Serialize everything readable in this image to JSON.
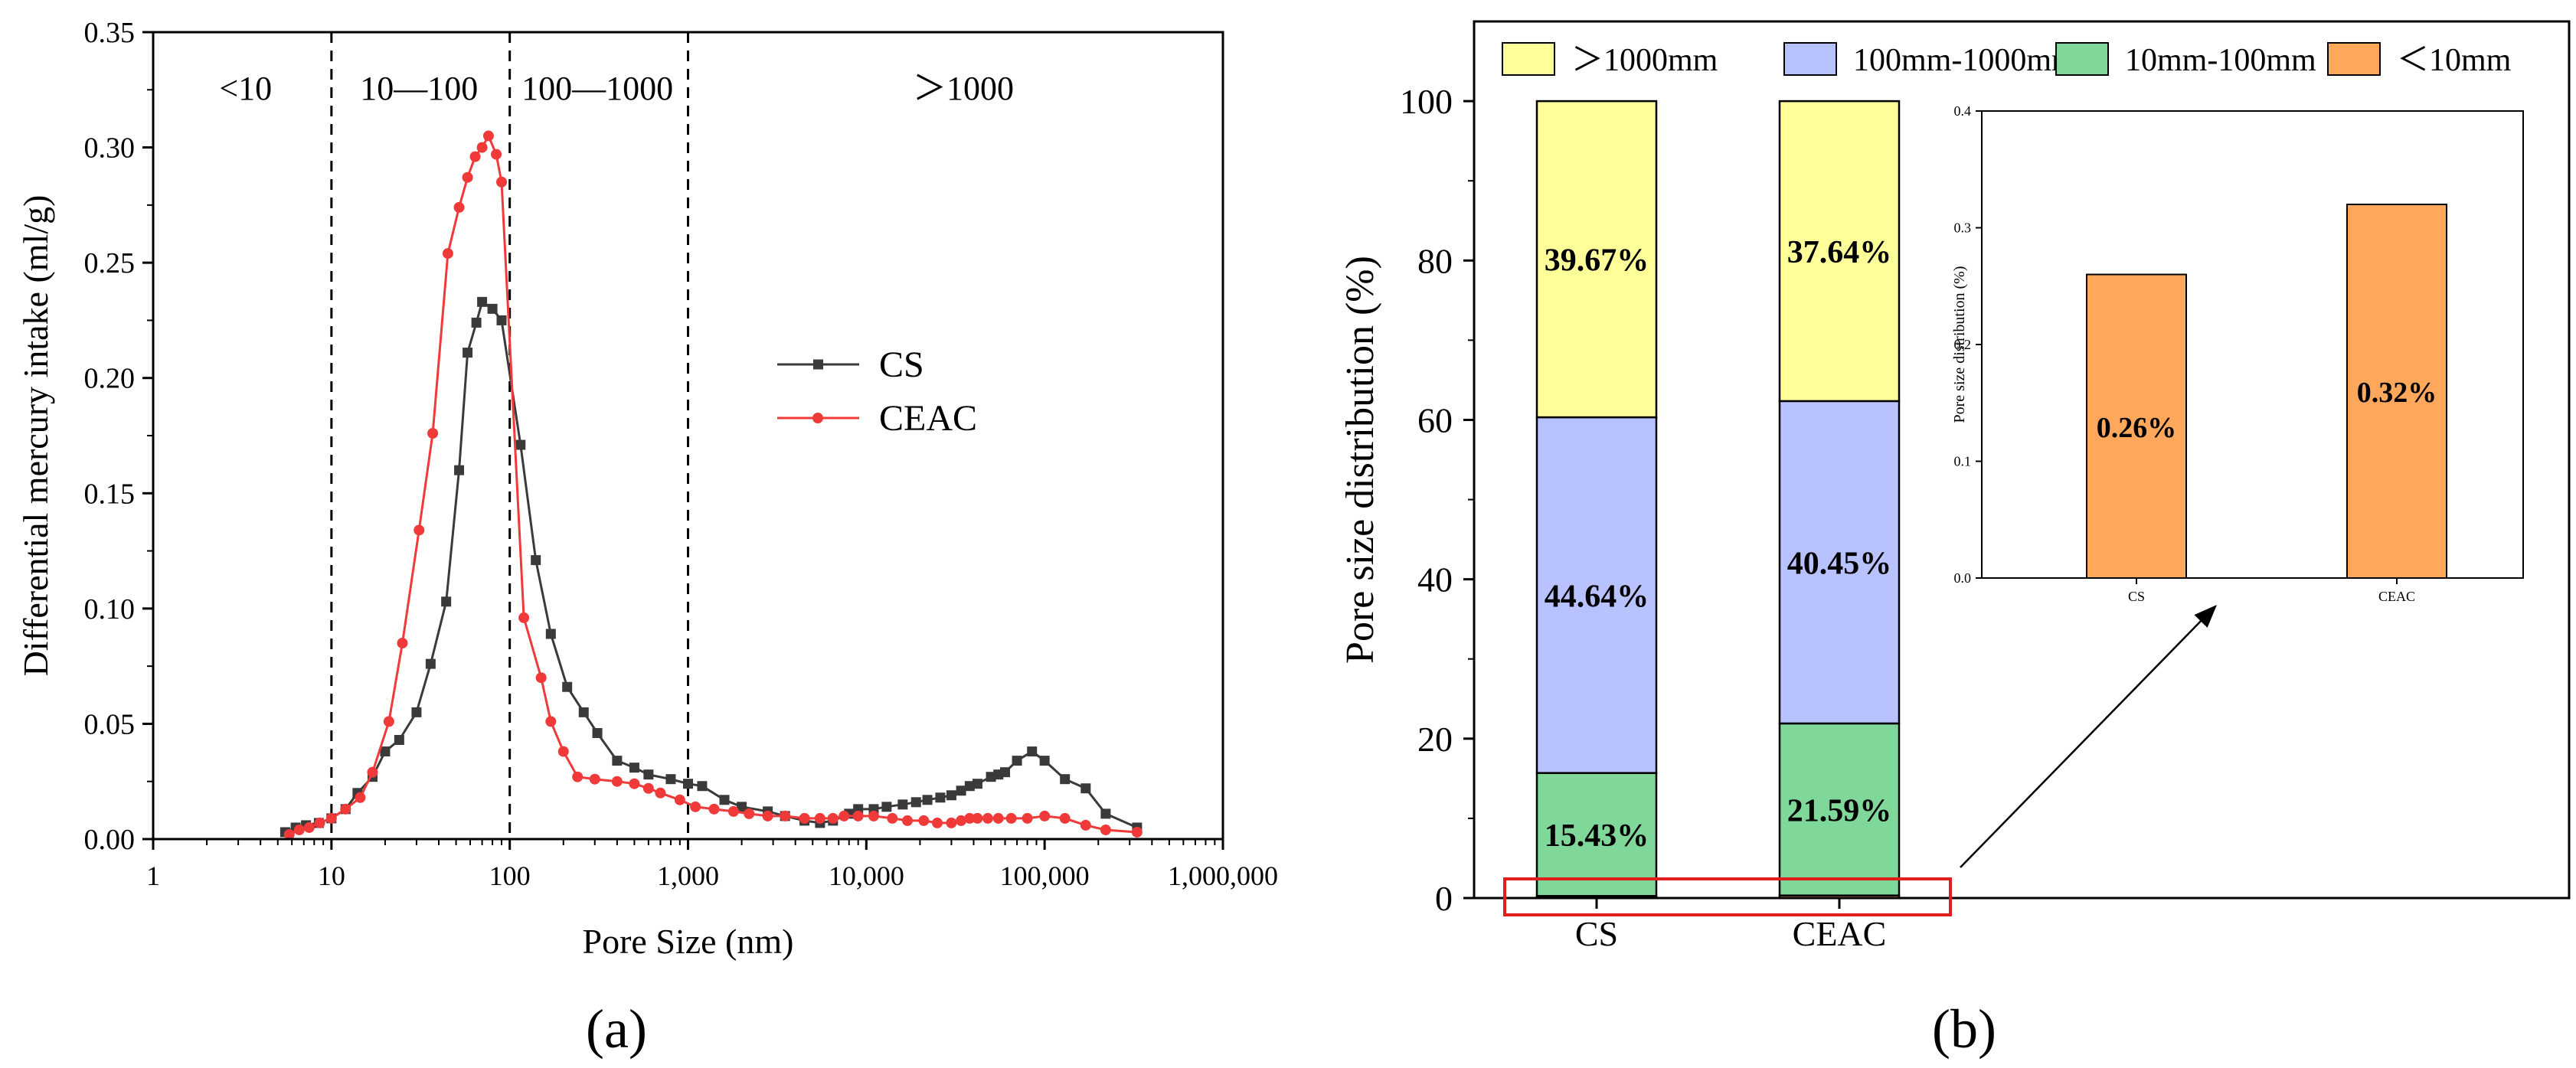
{
  "colors": {
    "cs": "#3a3a3a",
    "ceac": "#f03a3a",
    "gt1000": "#ffff99",
    "r100_1000": "#b8c2ff",
    "r10_100": "#7fd79a",
    "lt10": "#ffa85c",
    "highlight": "#e11d1d"
  },
  "panel_labels": {
    "a": "(a)",
    "b": "(b)"
  },
  "chart_data": [
    {
      "id": "a",
      "type": "line",
      "xscale": "log",
      "xlabel": "Pore Size (nm)",
      "ylabel": "Differential mercury intake (ml/g)",
      "xlim": [
        1,
        1000000
      ],
      "ylim": [
        0,
        0.35
      ],
      "xticks": [
        1,
        10,
        100,
        1000,
        10000,
        100000,
        1000000
      ],
      "xtick_labels": [
        "1",
        "10",
        "100",
        "1,000",
        "10,000",
        "100,000",
        "1,000,000"
      ],
      "yticks": [
        0,
        0.05,
        0.1,
        0.15,
        0.2,
        0.25,
        0.3,
        0.35
      ],
      "ytick_labels": [
        "0.00",
        "0.05",
        "0.10",
        "0.15",
        "0.20",
        "0.25",
        "0.30",
        "0.35"
      ],
      "dividers": [
        10,
        100,
        1000
      ],
      "regions": [
        {
          "label": "<10",
          "x": 3.3
        },
        {
          "label": "10—100",
          "x": 31
        },
        {
          "label": "100—1000",
          "x": 310
        },
        {
          "label": "＞1000",
          "x": 35000
        }
      ],
      "series": [
        {
          "name": "CS",
          "marker": "square",
          "points": [
            [
              5.5,
              0.003
            ],
            [
              6.3,
              0.005
            ],
            [
              7.2,
              0.006
            ],
            [
              8.5,
              0.007
            ],
            [
              10,
              0.009
            ],
            [
              12,
              0.013
            ],
            [
              14,
              0.02
            ],
            [
              17,
              0.027
            ],
            [
              20,
              0.038
            ],
            [
              24,
              0.043
            ],
            [
              30,
              0.055
            ],
            [
              36,
              0.076
            ],
            [
              44,
              0.103
            ],
            [
              52,
              0.16
            ],
            [
              58,
              0.211
            ],
            [
              65,
              0.224
            ],
            [
              70,
              0.233
            ],
            [
              80,
              0.23
            ],
            [
              90,
              0.225
            ],
            [
              115,
              0.171
            ],
            [
              140,
              0.121
            ],
            [
              170,
              0.089
            ],
            [
              210,
              0.066
            ],
            [
              260,
              0.055
            ],
            [
              310,
              0.046
            ],
            [
              400,
              0.034
            ],
            [
              500,
              0.031
            ],
            [
              600,
              0.028
            ],
            [
              800,
              0.026
            ],
            [
              1000,
              0.024
            ],
            [
              1200,
              0.023
            ],
            [
              1600,
              0.017
            ],
            [
              2000,
              0.014
            ],
            [
              2800,
              0.012
            ],
            [
              3500,
              0.01
            ],
            [
              4500,
              0.008
            ],
            [
              5500,
              0.007
            ],
            [
              6500,
              0.008
            ],
            [
              8000,
              0.011
            ],
            [
              9000,
              0.013
            ],
            [
              11000,
              0.013
            ],
            [
              13000,
              0.014
            ],
            [
              16000,
              0.015
            ],
            [
              19000,
              0.016
            ],
            [
              22000,
              0.017
            ],
            [
              26000,
              0.018
            ],
            [
              30000,
              0.019
            ],
            [
              34000,
              0.021
            ],
            [
              38000,
              0.023
            ],
            [
              42000,
              0.024
            ],
            [
              50000,
              0.027
            ],
            [
              55000,
              0.028
            ],
            [
              60000,
              0.029
            ],
            [
              70000,
              0.034
            ],
            [
              85000,
              0.038
            ],
            [
              100000,
              0.034
            ],
            [
              130000,
              0.026
            ],
            [
              170000,
              0.022
            ],
            [
              220000,
              0.011
            ],
            [
              330000,
              0.005
            ]
          ]
        },
        {
          "name": "CEAC",
          "marker": "circle",
          "points": [
            [
              5.8,
              0.002
            ],
            [
              6.6,
              0.004
            ],
            [
              7.5,
              0.005
            ],
            [
              8.6,
              0.007
            ],
            [
              10,
              0.009
            ],
            [
              12,
              0.013
            ],
            [
              14.5,
              0.018
            ],
            [
              17,
              0.029
            ],
            [
              21,
              0.051
            ],
            [
              25,
              0.085
            ],
            [
              31,
              0.134
            ],
            [
              37,
              0.176
            ],
            [
              45,
              0.254
            ],
            [
              52,
              0.274
            ],
            [
              58,
              0.287
            ],
            [
              64,
              0.296
            ],
            [
              70,
              0.3
            ],
            [
              76,
              0.305
            ],
            [
              84,
              0.297
            ],
            [
              90,
              0.285
            ],
            [
              120,
              0.096
            ],
            [
              150,
              0.07
            ],
            [
              170,
              0.051
            ],
            [
              200,
              0.038
            ],
            [
              240,
              0.027
            ],
            [
              300,
              0.026
            ],
            [
              400,
              0.025
            ],
            [
              500,
              0.024
            ],
            [
              600,
              0.022
            ],
            [
              700,
              0.02
            ],
            [
              900,
              0.017
            ],
            [
              1100,
              0.014
            ],
            [
              1400,
              0.013
            ],
            [
              1800,
              0.012
            ],
            [
              2200,
              0.011
            ],
            [
              2800,
              0.01
            ],
            [
              3500,
              0.01
            ],
            [
              4500,
              0.009
            ],
            [
              5500,
              0.009
            ],
            [
              6500,
              0.009
            ],
            [
              7500,
              0.01
            ],
            [
              9000,
              0.01
            ],
            [
              11000,
              0.01
            ],
            [
              14000,
              0.009
            ],
            [
              17000,
              0.008
            ],
            [
              21000,
              0.008
            ],
            [
              25000,
              0.007
            ],
            [
              30000,
              0.007
            ],
            [
              34000,
              0.008
            ],
            [
              38000,
              0.009
            ],
            [
              42000,
              0.009
            ],
            [
              48000,
              0.009
            ],
            [
              55000,
              0.009
            ],
            [
              65000,
              0.009
            ],
            [
              80000,
              0.009
            ],
            [
              100000,
              0.01
            ],
            [
              130000,
              0.009
            ],
            [
              170000,
              0.006
            ],
            [
              220000,
              0.004
            ],
            [
              330000,
              0.003
            ]
          ]
        }
      ]
    },
    {
      "id": "b",
      "type": "bar",
      "stacked": true,
      "ylabel": "Pore size distribution (%)",
      "ylim": [
        0,
        110
      ],
      "yticks": [
        0,
        20,
        40,
        60,
        80,
        100
      ],
      "categories": [
        "CS",
        "CEAC"
      ],
      "legend": [
        "＞1000mm",
        "100mm-1000mm",
        "10mm-100mm",
        "＜10mm"
      ],
      "series": [
        {
          "name": "＜10mm",
          "values": [
            0.26,
            0.32
          ],
          "labels": [
            "",
            ""
          ]
        },
        {
          "name": "10mm-100mm",
          "values": [
            15.43,
            21.59
          ],
          "labels": [
            "15.43%",
            "21.59%"
          ]
        },
        {
          "name": "100mm-1000mm",
          "values": [
            44.64,
            40.45
          ],
          "labels": [
            "44.64%",
            "40.45%"
          ]
        },
        {
          "name": "＞1000mm",
          "values": [
            39.67,
            37.64
          ],
          "labels": [
            "39.67%",
            "37.64%"
          ]
        }
      ],
      "inset": {
        "type": "bar",
        "ylabel": "Pore size distribution (%)",
        "ylim": [
          0,
          0.4
        ],
        "yticks": [
          0,
          0.1,
          0.2,
          0.3,
          0.4
        ],
        "ytick_labels": [
          "0.0",
          "0.1",
          "0.2",
          "0.3",
          "0.4"
        ],
        "categories": [
          "CS",
          "CEAC"
        ],
        "values": [
          0.26,
          0.32
        ],
        "labels": [
          "0.26%",
          "0.32%"
        ]
      }
    }
  ]
}
